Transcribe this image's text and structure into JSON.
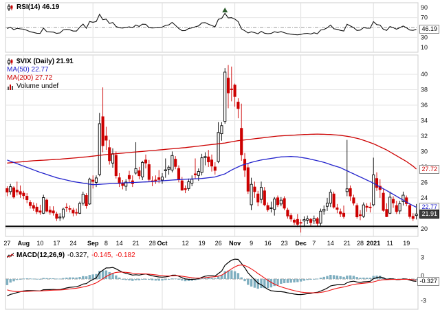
{
  "panels": {
    "rsi": {
      "legend": "RSI(14) 46.19",
      "value_box": "46.19"
    },
    "price": {
      "symbol_legend": "$VIX (Daily) 21.91",
      "ma50_legend": "MA(50) 22.77",
      "ma200_legend": "MA(200) 27.72",
      "volume_legend": "Volume undef",
      "ma200_box": "27.72",
      "ma50_box": "22.77",
      "last_box": "21.91"
    },
    "macd": {
      "name": "MACD(12,26,9)",
      "macd_value": "-0.327,",
      "signal_value": "-0.145,",
      "hist_value": "-0.182",
      "value_box": "-0.327"
    }
  },
  "colors": {
    "up": "#000000",
    "up_fill": "#ffffff",
    "down": "#cc0000",
    "ma50": "#2222cc",
    "ma200": "#cc0000",
    "rsi": "#111111",
    "macd": "#000000",
    "signal": "#ee1111",
    "hist": "#7fafc0",
    "grid": "#e7e7e7",
    "month_grid": "#dedede",
    "border": "#cccccc",
    "mid": "#999999",
    "support": "#000000",
    "annotation": "#2e5e2e"
  },
  "chart_data": {
    "type": "candlestick",
    "title": "$VIX (Daily)",
    "symbol": "$VIX",
    "timeframe": "Daily",
    "last_close": 21.91,
    "readouts": {
      "rsi": 46.19,
      "ma50": 22.77,
      "ma200": 27.72,
      "macd": -0.327,
      "signal": -0.145,
      "histogram": -0.182
    },
    "indicators": {
      "rsi_period": 14,
      "macd_fast": 12,
      "macd_slow": 26,
      "macd_signal": 9
    },
    "ylim_price": [
      19,
      42.5
    ],
    "ylim_rsi": [
      0,
      100
    ],
    "ylim_macd": [
      -4.2,
      4.2
    ],
    "y_ticks_price": [
      40,
      38,
      36,
      34,
      32,
      30,
      28,
      26,
      24,
      22,
      20
    ],
    "y_ticks_rsi": [
      90,
      70,
      30,
      10
    ],
    "y_ticks_macd": [
      3,
      0,
      -3
    ],
    "support_line": 20.3,
    "annotation": {
      "panel": "rsi",
      "index": 66,
      "symbol": "triangle-up"
    },
    "x_labels": [
      {
        "i": 0,
        "t": "27"
      },
      {
        "i": 5,
        "t": "Aug",
        "m": 1
      },
      {
        "i": 10,
        "t": "10"
      },
      {
        "i": 15,
        "t": "17"
      },
      {
        "i": 20,
        "t": "24"
      },
      {
        "i": 26,
        "t": "Sep",
        "m": 1
      },
      {
        "i": 30,
        "t": "8"
      },
      {
        "i": 34,
        "t": "14"
      },
      {
        "i": 39,
        "t": "21"
      },
      {
        "i": 44,
        "t": "28"
      },
      {
        "i": 47,
        "t": "Oct",
        "m": 1
      },
      {
        "i": 54,
        "t": "12"
      },
      {
        "i": 59,
        "t": "19"
      },
      {
        "i": 64,
        "t": "26"
      },
      {
        "i": 69,
        "t": "Nov",
        "m": 1
      },
      {
        "i": 74,
        "t": "9"
      },
      {
        "i": 79,
        "t": "16"
      },
      {
        "i": 84,
        "t": "23"
      },
      {
        "i": 89,
        "t": "Dec",
        "m": 1
      },
      {
        "i": 93,
        "t": "7"
      },
      {
        "i": 98,
        "t": "14"
      },
      {
        "i": 103,
        "t": "21"
      },
      {
        "i": 107,
        "t": "28"
      },
      {
        "i": 111,
        "t": "2021",
        "m": 1
      },
      {
        "i": 116,
        "t": "11"
      },
      {
        "i": 121,
        "t": "19"
      }
    ],
    "ohlc": [
      [
        25.2,
        25.5,
        24.2,
        24.74
      ],
      [
        24.8,
        25.8,
        24.4,
        25.44
      ],
      [
        25.3,
        25.5,
        23.9,
        24.1
      ],
      [
        25.0,
        26.1,
        24.3,
        24.76
      ],
      [
        24.8,
        25.6,
        24.0,
        24.46
      ],
      [
        24.6,
        24.9,
        23.8,
        24.28
      ],
      [
        24.2,
        24.6,
        23.3,
        23.76
      ],
      [
        23.4,
        23.7,
        22.6,
        22.99
      ],
      [
        23.0,
        23.4,
        22.3,
        22.65
      ],
      [
        22.8,
        23.3,
        21.9,
        22.21
      ],
      [
        22.3,
        23.1,
        21.8,
        22.13
      ],
      [
        22.0,
        24.4,
        21.9,
        24.03
      ],
      [
        23.7,
        23.9,
        22.1,
        22.28
      ],
      [
        22.4,
        22.9,
        21.8,
        22.13
      ],
      [
        22.3,
        22.9,
        21.7,
        22.05
      ],
      [
        21.9,
        22.2,
        21.0,
        21.35
      ],
      [
        21.4,
        22.0,
        21.0,
        21.51
      ],
      [
        21.5,
        22.7,
        21.2,
        22.54
      ],
      [
        22.8,
        23.3,
        22.2,
        22.72
      ],
      [
        22.6,
        23.0,
        22.1,
        22.54
      ],
      [
        22.4,
        22.7,
        21.6,
        22.03
      ],
      [
        22.1,
        22.6,
        21.7,
        22.03
      ],
      [
        22.0,
        23.5,
        21.9,
        23.27
      ],
      [
        23.3,
        24.8,
        23.0,
        24.47
      ],
      [
        24.3,
        24.6,
        22.6,
        22.96
      ],
      [
        23.2,
        26.6,
        23.1,
        26.41
      ],
      [
        26.3,
        26.9,
        25.2,
        26.12
      ],
      [
        26.0,
        26.9,
        25.4,
        26.57
      ],
      [
        27.0,
        35.0,
        26.8,
        33.6
      ],
      [
        34.5,
        38.3,
        29.9,
        30.75
      ],
      [
        32.0,
        33.2,
        30.2,
        31.46
      ],
      [
        30.5,
        31.5,
        28.3,
        28.81
      ],
      [
        28.5,
        30.4,
        27.9,
        29.71
      ],
      [
        29.5,
        30.0,
        26.5,
        26.87
      ],
      [
        26.6,
        27.2,
        25.4,
        25.85
      ],
      [
        25.9,
        26.3,
        25.1,
        25.59
      ],
      [
        25.5,
        26.4,
        24.9,
        26.04
      ],
      [
        26.9,
        27.5,
        26.0,
        26.46
      ],
      [
        26.2,
        26.9,
        25.4,
        25.83
      ],
      [
        27.2,
        31.2,
        27.0,
        27.78
      ],
      [
        27.5,
        28.0,
        26.4,
        26.86
      ],
      [
        26.7,
        28.8,
        26.3,
        28.58
      ],
      [
        28.9,
        29.6,
        27.8,
        28.51
      ],
      [
        28.3,
        28.9,
        26.1,
        26.38
      ],
      [
        26.2,
        26.8,
        25.5,
        26.19
      ],
      [
        26.3,
        26.9,
        25.8,
        26.27
      ],
      [
        26.6,
        27.6,
        25.9,
        26.37
      ],
      [
        26.3,
        27.2,
        25.8,
        26.7
      ],
      [
        27.5,
        29.1,
        26.6,
        27.63
      ],
      [
        27.7,
        28.2,
        27.0,
        27.96
      ],
      [
        27.6,
        30.0,
        27.3,
        29.48
      ],
      [
        29.0,
        29.4,
        27.7,
        28.06
      ],
      [
        27.8,
        28.2,
        26.0,
        26.36
      ],
      [
        26.2,
        26.7,
        24.9,
        25.0
      ],
      [
        25.2,
        25.6,
        24.6,
        25.07
      ],
      [
        25.2,
        26.5,
        24.9,
        26.07
      ],
      [
        25.9,
        26.9,
        25.5,
        26.4
      ],
      [
        27.1,
        29.1,
        26.5,
        26.97
      ],
      [
        26.9,
        27.8,
        26.2,
        27.41
      ],
      [
        27.3,
        29.7,
        26.9,
        29.18
      ],
      [
        29.2,
        29.9,
        28.2,
        29.35
      ],
      [
        29.3,
        30.2,
        28.0,
        28.65
      ],
      [
        28.9,
        29.6,
        27.4,
        28.11
      ],
      [
        28.0,
        28.6,
        27.0,
        27.55
      ],
      [
        28.7,
        33.8,
        28.5,
        32.46
      ],
      [
        32.3,
        33.8,
        31.4,
        33.35
      ],
      [
        33.9,
        40.8,
        33.6,
        40.28
      ],
      [
        39.5,
        41.2,
        35.6,
        37.59
      ],
      [
        38.1,
        41.0,
        36.5,
        38.02
      ],
      [
        38.6,
        38.8,
        35.8,
        37.13
      ],
      [
        36.4,
        36.9,
        34.3,
        35.55
      ],
      [
        33.0,
        36.2,
        28.8,
        29.57
      ],
      [
        29.0,
        29.8,
        26.7,
        27.58
      ],
      [
        27.9,
        28.4,
        24.5,
        24.86
      ],
      [
        23.1,
        26.6,
        22.4,
        25.75
      ],
      [
        25.4,
        26.1,
        24.0,
        24.8
      ],
      [
        24.5,
        24.9,
        22.9,
        23.45
      ],
      [
        23.8,
        26.1,
        23.3,
        25.35
      ],
      [
        24.9,
        25.4,
        22.9,
        23.1
      ],
      [
        23.0,
        23.4,
        22.2,
        22.45
      ],
      [
        22.6,
        23.5,
        22.1,
        22.71
      ],
      [
        22.5,
        24.1,
        21.7,
        23.84
      ],
      [
        24.0,
        24.3,
        22.8,
        23.11
      ],
      [
        23.2,
        24.1,
        22.9,
        23.7
      ],
      [
        23.9,
        24.2,
        22.4,
        22.66
      ],
      [
        22.4,
        22.7,
        21.3,
        21.64
      ],
      [
        21.7,
        22.0,
        20.9,
        21.25
      ],
      [
        21.1,
        21.3,
        20.5,
        20.84
      ],
      [
        21.2,
        21.9,
        20.2,
        20.57
      ],
      [
        20.8,
        21.2,
        19.5,
        20.77
      ],
      [
        21.0,
        21.6,
        20.2,
        21.17
      ],
      [
        21.1,
        21.7,
        20.6,
        21.28
      ],
      [
        21.2,
        21.4,
        20.3,
        20.79
      ],
      [
        21.0,
        21.7,
        20.6,
        21.3
      ],
      [
        21.3,
        21.5,
        20.3,
        20.68
      ],
      [
        20.7,
        22.6,
        20.4,
        22.27
      ],
      [
        22.3,
        23.0,
        21.8,
        22.52
      ],
      [
        22.9,
        24.0,
        22.3,
        23.31
      ],
      [
        23.3,
        25.1,
        22.8,
        24.72
      ],
      [
        24.5,
        24.8,
        22.6,
        22.8
      ],
      [
        22.7,
        23.2,
        22.0,
        22.5
      ],
      [
        22.2,
        22.6,
        21.5,
        21.93
      ],
      [
        22.0,
        23.0,
        21.3,
        21.57
      ],
      [
        24.8,
        31.5,
        24.2,
        25.16
      ],
      [
        25.2,
        25.6,
        23.6,
        24.23
      ],
      [
        24.0,
        24.4,
        23.0,
        23.31
      ],
      [
        23.0,
        23.3,
        21.3,
        21.53
      ],
      [
        21.8,
        22.4,
        21.1,
        21.7
      ],
      [
        21.6,
        23.4,
        21.4,
        23.08
      ],
      [
        22.9,
        23.3,
        22.2,
        22.77
      ],
      [
        22.8,
        23.4,
        22.1,
        22.75
      ],
      [
        23.1,
        29.2,
        22.9,
        26.97
      ],
      [
        26.5,
        27.3,
        24.9,
        25.34
      ],
      [
        25.5,
        26.4,
        24.0,
        25.07
      ],
      [
        24.6,
        25.1,
        22.2,
        22.37
      ],
      [
        22.5,
        23.3,
        21.5,
        21.56
      ],
      [
        22.0,
        24.8,
        21.9,
        24.08
      ],
      [
        23.8,
        24.2,
        22.7,
        23.33
      ],
      [
        23.0,
        23.6,
        21.9,
        22.21
      ],
      [
        22.3,
        23.6,
        21.9,
        23.25
      ],
      [
        23.5,
        24.8,
        23.0,
        24.34
      ],
      [
        24.0,
        24.3,
        22.9,
        23.24
      ],
      [
        23.0,
        23.3,
        21.3,
        21.58
      ],
      [
        21.6,
        22.0,
        21.0,
        21.32
      ],
      [
        21.7,
        23.2,
        21.2,
        21.91
      ]
    ],
    "ma50_points": [
      [
        0,
        28.9
      ],
      [
        5,
        28.1
      ],
      [
        10,
        27.3
      ],
      [
        15,
        26.6
      ],
      [
        20,
        26.1
      ],
      [
        26,
        25.7
      ],
      [
        30,
        25.8
      ],
      [
        34,
        25.9
      ],
      [
        39,
        26.0
      ],
      [
        44,
        26.1
      ],
      [
        47,
        26.2
      ],
      [
        50,
        26.3
      ],
      [
        54,
        26.4
      ],
      [
        59,
        26.5
      ],
      [
        63,
        26.7
      ],
      [
        66,
        27.1
      ],
      [
        68,
        27.6
      ],
      [
        71,
        28.2
      ],
      [
        74,
        28.6
      ],
      [
        77,
        28.9
      ],
      [
        80,
        29.1
      ],
      [
        83,
        29.3
      ],
      [
        86,
        29.35
      ],
      [
        88,
        29.3
      ],
      [
        91,
        29.1
      ],
      [
        93,
        28.9
      ],
      [
        96,
        28.6
      ],
      [
        98,
        28.3
      ],
      [
        101,
        27.9
      ],
      [
        103,
        27.5
      ],
      [
        105,
        27.1
      ],
      [
        107,
        26.7
      ],
      [
        109,
        26.3
      ],
      [
        111,
        25.9
      ],
      [
        113,
        25.4
      ],
      [
        116,
        24.7
      ],
      [
        118,
        24.2
      ],
      [
        120,
        23.7
      ],
      [
        122,
        23.2
      ],
      [
        124,
        22.77
      ]
    ],
    "ma200_points": [
      [
        0,
        28.5
      ],
      [
        8,
        28.8
      ],
      [
        16,
        29.0
      ],
      [
        24,
        29.3
      ],
      [
        30,
        29.6
      ],
      [
        38,
        29.9
      ],
      [
        46,
        30.2
      ],
      [
        54,
        30.5
      ],
      [
        60,
        30.8
      ],
      [
        66,
        31.1
      ],
      [
        70,
        31.4
      ],
      [
        74,
        31.6
      ],
      [
        78,
        31.8
      ],
      [
        82,
        32.0
      ],
      [
        86,
        32.1
      ],
      [
        90,
        32.2
      ],
      [
        94,
        32.25
      ],
      [
        98,
        32.2
      ],
      [
        101,
        32.1
      ],
      [
        104,
        31.9
      ],
      [
        107,
        31.6
      ],
      [
        109,
        31.3
      ],
      [
        111,
        31.0
      ],
      [
        113,
        30.6
      ],
      [
        115,
        30.2
      ],
      [
        117,
        29.7
      ],
      [
        119,
        29.2
      ],
      [
        121,
        28.7
      ],
      [
        123,
        28.1
      ],
      [
        124,
        27.72
      ]
    ],
    "rsi_seed": {
      "avg_gain": 0.45,
      "avg_loss": 0.49
    },
    "macd_seed": {
      "ema26_start": 27.1,
      "signal_start": -1.51
    }
  }
}
